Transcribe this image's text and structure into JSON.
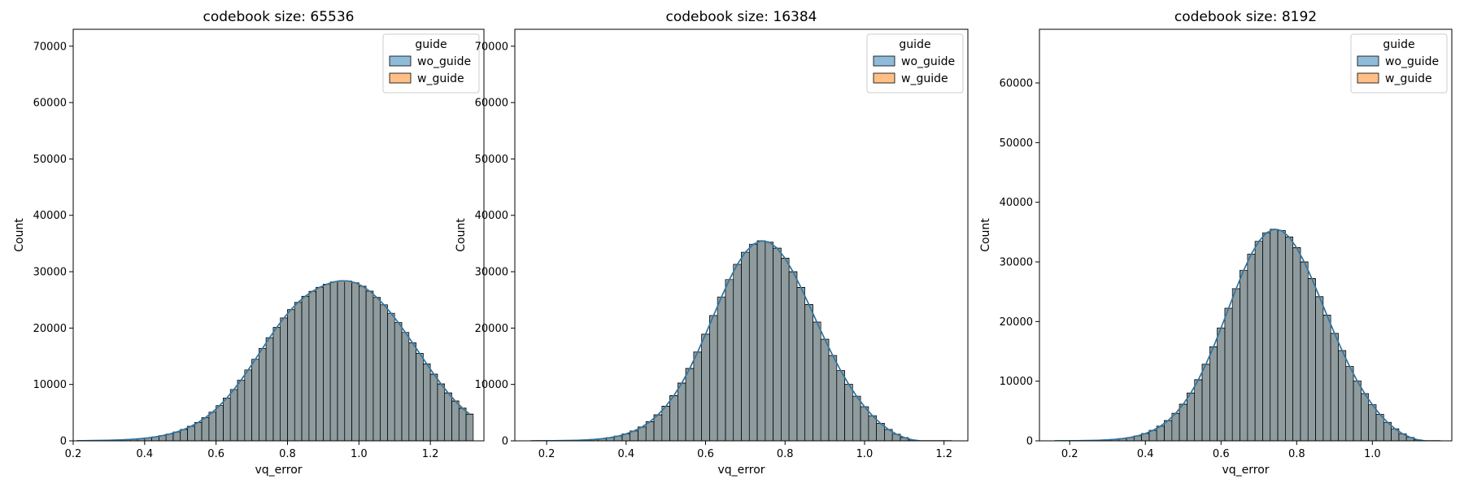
{
  "chart_data": [
    {
      "type": "histogram",
      "title": "codebook size: 65536",
      "xlabel": "vq_error",
      "ylabel": "Count",
      "xlim": [
        0.2,
        1.35
      ],
      "ylim": [
        0,
        73000
      ],
      "xticks": [
        0.2,
        0.4,
        0.6,
        0.8,
        1.0,
        1.2
      ],
      "xtick_labels": [
        "0.2",
        "0.4",
        "0.6",
        "0.8",
        "1.0",
        "1.2"
      ],
      "yticks": [
        0,
        10000,
        20000,
        30000,
        40000,
        50000,
        60000,
        70000
      ],
      "ytick_labels": [
        "0",
        "10000",
        "20000",
        "30000",
        "40000",
        "50000",
        "60000",
        "70000"
      ],
      "grid": false,
      "bin_edges": [
        0.2,
        0.22,
        0.24,
        0.26,
        0.28,
        0.3,
        0.32,
        0.34,
        0.36,
        0.38,
        0.4,
        0.42,
        0.44,
        0.46,
        0.48,
        0.5,
        0.52,
        0.54,
        0.56,
        0.58,
        0.6,
        0.62,
        0.64,
        0.66,
        0.68,
        0.7,
        0.72,
        0.74,
        0.76,
        0.78,
        0.8,
        0.82,
        0.84,
        0.86,
        0.88,
        0.9,
        0.92,
        0.94,
        0.96,
        0.98,
        1.0,
        1.02,
        1.04,
        1.06,
        1.08,
        1.1,
        1.12,
        1.14,
        1.16,
        1.18,
        1.2,
        1.22,
        1.24,
        1.26,
        1.28,
        1.3,
        1.32
      ],
      "legend": {
        "title": "guide",
        "position": "top-right"
      },
      "series": [
        {
          "name": "wo_guide",
          "color": "#1f77b4",
          "values": [
            25,
            34,
            46,
            63,
            86,
            117,
            159,
            215,
            290,
            390,
            522,
            694,
            916,
            1200,
            1561,
            2014,
            2576,
            3264,
            4095,
            5087,
            6251,
            7593,
            9109,
            10782,
            12586,
            14478,
            16407,
            18313,
            20133,
            21810,
            23301,
            24581,
            25652,
            26529,
            27238,
            27795,
            28195,
            28398,
            28357,
            28041,
            27441,
            26571,
            25459,
            24137,
            22638,
            20993,
            19232,
            17389,
            15505,
            13623,
            11790,
            10052,
            8450,
            7013,
            5757,
            4686
          ]
        },
        {
          "name": "w_guide",
          "color": "#ff7f0e",
          "values": [
            26,
            35,
            48,
            65,
            89,
            121,
            163,
            221,
            297,
            398,
            531,
            705,
            929,
            1213,
            1575,
            2028,
            2589,
            3276,
            4106,
            5095,
            6255,
            7593,
            9104,
            10771,
            12567,
            14452,
            16373,
            18272,
            20085,
            21758,
            23246,
            24523,
            25592,
            26468,
            27176,
            27731,
            28127,
            28330,
            28288,
            27974,
            27377,
            26511,
            25406,
            24093,
            22605,
            20973,
            19227,
            17399,
            15531,
            13665,
            11845,
            10118,
            8524,
            7090,
            5833,
            4758
          ]
        }
      ]
    },
    {
      "type": "histogram",
      "title": "codebook size: 16384",
      "xlabel": "vq_error",
      "ylabel": "Count",
      "xlim": [
        0.12,
        1.26
      ],
      "ylim": [
        0,
        73000
      ],
      "xticks": [
        0.2,
        0.4,
        0.6,
        0.8,
        1.0,
        1.2
      ],
      "xtick_labels": [
        "0.2",
        "0.4",
        "0.6",
        "0.8",
        "1.0",
        "1.2"
      ],
      "yticks": [
        0,
        10000,
        20000,
        30000,
        40000,
        50000,
        60000,
        70000
      ],
      "ytick_labels": [
        "0",
        "10000",
        "20000",
        "30000",
        "40000",
        "50000",
        "60000",
        "70000"
      ],
      "grid": false,
      "bin_edges": [
        0.15,
        0.17,
        0.19,
        0.21,
        0.23,
        0.25,
        0.27,
        0.29,
        0.31,
        0.33,
        0.35,
        0.37,
        0.39,
        0.41,
        0.43,
        0.45,
        0.47,
        0.49,
        0.51,
        0.53,
        0.55,
        0.57,
        0.59,
        0.61,
        0.63,
        0.65,
        0.67,
        0.69,
        0.71,
        0.73,
        0.75,
        0.77,
        0.79,
        0.81,
        0.83,
        0.85,
        0.87,
        0.89,
        0.91,
        0.93,
        0.95,
        0.97,
        0.99,
        1.01,
        1.03,
        1.05,
        1.07,
        1.09,
        1.11,
        1.13,
        1.15,
        1.17,
        1.19,
        1.21,
        1.23
      ],
      "legend": {
        "title": "guide",
        "position": "top-right"
      },
      "series": [
        {
          "name": "wo_guide",
          "color": "#1f77b4",
          "values": [
            0,
            10,
            16,
            26,
            41,
            65,
            103,
            161,
            248,
            377,
            565,
            836,
            1217,
            1742,
            2448,
            3383,
            4590,
            6113,
            7982,
            10216,
            12811,
            15732,
            18904,
            22212,
            25503,
            28599,
            31309,
            33452,
            34877,
            35482,
            35231,
            34155,
            32351,
            29965,
            27170,
            24144,
            21045,
            18003,
            15116,
            12450,
            10040,
            7903,
            6038,
            4438,
            3095,
            2009,
            1177,
            575,
            168,
            0,
            0,
            0,
            0,
            0
          ]
        },
        {
          "name": "w_guide",
          "color": "#ff7f0e",
          "values": [
            0,
            11,
            17,
            27,
            43,
            68,
            107,
            166,
            255,
            386,
            577,
            851,
            1236,
            1767,
            2478,
            3418,
            4631,
            6159,
            8032,
            10266,
            12859,
            15775,
            18938,
            22235,
            25514,
            28600,
            31304,
            33446,
            34877,
            35492,
            35258,
            34197,
            32402,
            30018,
            27221,
            24189,
            21083,
            18035,
            15143,
            12473,
            10061,
            7923,
            6058,
            4459,
            3116,
            2029,
            1194,
            588,
            174,
            0,
            0,
            0,
            0,
            0
          ]
        }
      ]
    },
    {
      "type": "histogram",
      "title": "codebook size: 8192",
      "xlabel": "vq_error",
      "ylabel": "Count",
      "xlim": [
        0.12,
        1.21
      ],
      "ylim": [
        0,
        69000
      ],
      "xticks": [
        0.2,
        0.4,
        0.6,
        0.8,
        1.0
      ],
      "xtick_labels": [
        "0.2",
        "0.4",
        "0.6",
        "0.8",
        "1.0"
      ],
      "yticks": [
        0,
        10000,
        20000,
        30000,
        40000,
        50000,
        60000
      ],
      "ytick_labels": [
        "0",
        "10000",
        "20000",
        "30000",
        "40000",
        "50000",
        "60000"
      ],
      "grid": false,
      "bin_edges": [
        0.15,
        0.17,
        0.19,
        0.21,
        0.23,
        0.25,
        0.27,
        0.29,
        0.31,
        0.33,
        0.35,
        0.37,
        0.39,
        0.41,
        0.43,
        0.45,
        0.47,
        0.49,
        0.51,
        0.53,
        0.55,
        0.57,
        0.59,
        0.61,
        0.63,
        0.65,
        0.67,
        0.69,
        0.71,
        0.73,
        0.75,
        0.77,
        0.79,
        0.81,
        0.83,
        0.85,
        0.87,
        0.89,
        0.91,
        0.93,
        0.95,
        0.97,
        0.99,
        1.01,
        1.03,
        1.05,
        1.07,
        1.09,
        1.11,
        1.13,
        1.15,
        1.17,
        1.19
      ],
      "legend": {
        "title": "guide",
        "position": "top-right"
      },
      "series": [
        {
          "name": "wo_guide",
          "color": "#1f77b4",
          "values": [
            0,
            10,
            16,
            26,
            41,
            65,
            103,
            161,
            248,
            377,
            565,
            836,
            1217,
            1742,
            2448,
            3383,
            4590,
            6113,
            7982,
            10216,
            12811,
            15732,
            18904,
            22212,
            25503,
            28599,
            31309,
            33452,
            34877,
            35482,
            35231,
            34155,
            32351,
            29965,
            27170,
            24144,
            21045,
            18003,
            15116,
            12450,
            10040,
            7903,
            6038,
            4438,
            3095,
            2009,
            1177,
            575,
            168,
            0,
            0,
            0
          ]
        },
        {
          "name": "w_guide",
          "color": "#ff7f0e",
          "values": [
            0,
            11,
            17,
            27,
            43,
            68,
            107,
            166,
            255,
            386,
            577,
            851,
            1236,
            1767,
            2478,
            3418,
            4631,
            6159,
            8032,
            10266,
            12859,
            15775,
            18938,
            22235,
            25514,
            28600,
            31304,
            33446,
            34877,
            35492,
            35258,
            34197,
            32402,
            30018,
            27221,
            24189,
            21083,
            18035,
            15143,
            12473,
            10061,
            7923,
            6058,
            4459,
            3116,
            2029,
            1194,
            588,
            174,
            0,
            0,
            0
          ]
        }
      ]
    }
  ]
}
